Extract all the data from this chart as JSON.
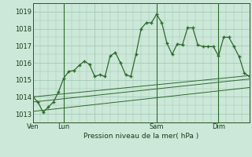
{
  "bg_color": "#cce8d8",
  "grid_color": "#9cc4b0",
  "line_color": "#2d6a2d",
  "title": "Pression niveau de la mer( hPa )",
  "ylim": [
    1012.5,
    1019.5
  ],
  "yticks": [
    1013,
    1014,
    1015,
    1016,
    1017,
    1018,
    1019
  ],
  "xtick_positions": [
    0,
    12,
    24,
    48,
    72
  ],
  "xtick_labels": [
    "Ven",
    "Lun",
    "",
    "Sam",
    "Dim"
  ],
  "day_vlines": [
    12,
    48,
    72
  ],
  "xlim": [
    0,
    84
  ],
  "main_line_x": [
    0,
    2,
    4,
    6,
    8,
    10,
    12,
    14,
    16,
    18,
    20,
    22,
    24,
    26,
    28,
    30,
    32,
    34,
    36,
    38,
    40,
    42,
    44,
    46,
    48,
    50,
    52,
    54,
    56,
    58,
    60,
    62,
    64,
    66,
    68,
    70,
    72,
    74,
    76,
    78,
    80,
    82,
    84
  ],
  "main_line_y": [
    1014.0,
    1013.7,
    1013.1,
    1013.4,
    1013.7,
    1014.3,
    1015.1,
    1015.5,
    1015.55,
    1015.85,
    1016.1,
    1015.9,
    1015.2,
    1015.3,
    1015.2,
    1016.4,
    1016.6,
    1016.0,
    1015.3,
    1015.2,
    1016.5,
    1018.0,
    1018.35,
    1018.35,
    1018.85,
    1018.35,
    1017.15,
    1016.5,
    1017.1,
    1017.05,
    1018.05,
    1018.05,
    1017.05,
    1016.95,
    1016.95,
    1016.95,
    1016.4,
    1017.5,
    1017.5,
    1016.95,
    1016.35,
    1015.4,
    1015.2
  ],
  "trend1_x": [
    0,
    84
  ],
  "trend1_y": [
    1014.0,
    1015.25
  ],
  "trend2_x": [
    0,
    84
  ],
  "trend2_y": [
    1013.7,
    1015.05
  ],
  "trend3_x": [
    0,
    84
  ],
  "trend3_y": [
    1013.15,
    1014.55
  ]
}
